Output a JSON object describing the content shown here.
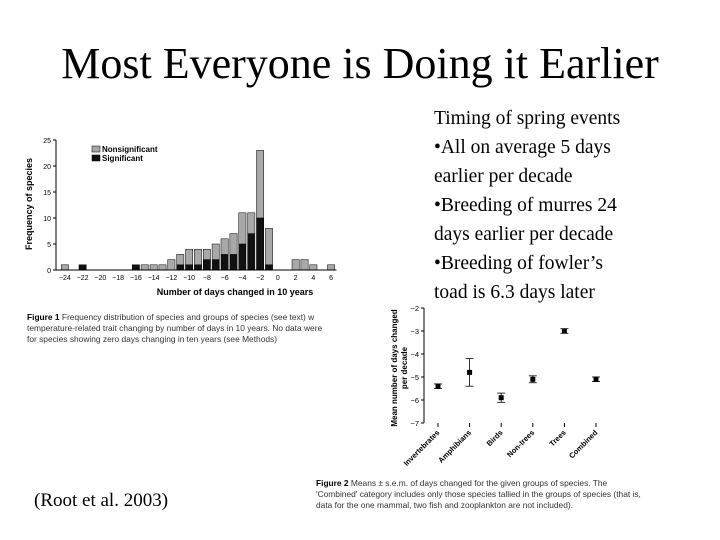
{
  "slide": {
    "title": "Most Everyone is Doing it Earlier",
    "bullets": [
      "Timing of spring events",
      "•All on average 5 days",
      "earlier per decade",
      "•Breeding of murres 24",
      "days earlier per decade",
      "•Breeding of fowler’s",
      "toad is 6.3 days later"
    ],
    "citation": "(Root et al. 2003)"
  },
  "figure1": {
    "caption_label": "Figure 1",
    "caption_lines": [
      " Frequency distribution of species and groups of species (see text) w",
      "temperature-related trait changing by number of days in 10 years. No data were",
      "for species showing zero days changing in ten years (see Methods)"
    ]
  },
  "figure2": {
    "caption_label": "Figure 2",
    "caption_lines": [
      " Means ± s.e.m. of days changed for the given groups of species. The",
      "'Combined' category includes only those species tallied in the groups of species (that is,",
      "data for the one mammal, two fish and zooplankton are not included)."
    ]
  },
  "colors": {
    "nonsignificant": "#a8a8a8",
    "significant": "#111111"
  },
  "chart_data": [
    {
      "type": "bar",
      "stacked": true,
      "xlabel": "Number of days changed in 10 years",
      "ylabel": "Frequency of species",
      "ylim": [
        0,
        25
      ],
      "yticks": [
        0,
        5,
        10,
        15,
        20,
        25
      ],
      "xticks": [
        -24,
        -22,
        -20,
        -18,
        -16,
        -14,
        -12,
        -10,
        -8,
        -6,
        -4,
        -2,
        0,
        2,
        4,
        6
      ],
      "xlim": [
        -25,
        7
      ],
      "legend": [
        "Nonsignificant",
        "Significant"
      ],
      "legend_position": "top-left",
      "x": [
        -24,
        -22,
        -16,
        -15,
        -14,
        -13,
        -12,
        -11,
        -10,
        -9,
        -8,
        -7,
        -6,
        -5,
        -4,
        -3,
        -2,
        -1,
        2,
        3,
        4,
        6
      ],
      "series": [
        {
          "name": "Significant",
          "values": [
            0,
            1,
            1,
            0,
            0,
            0,
            0,
            1,
            1,
            1,
            2,
            2,
            3,
            3,
            5,
            7,
            10,
            1,
            0,
            0,
            0,
            0
          ]
        },
        {
          "name": "Nonsignificant",
          "values": [
            1,
            0,
            0,
            1,
            1,
            1,
            2,
            2,
            3,
            3,
            2,
            3,
            3,
            4,
            6,
            4,
            13,
            7,
            2,
            2,
            1,
            1
          ]
        }
      ]
    },
    {
      "type": "scatter",
      "error_bars": true,
      "ylabel": "Mean number of days changed per decade",
      "ylim": [
        -7,
        -2
      ],
      "yticks": [
        -2,
        -3,
        -4,
        -5,
        -6,
        -7
      ],
      "categories": [
        "Invertebrates",
        "Amphibians",
        "Birds",
        "Non-trees",
        "Trees",
        "Combined"
      ],
      "values": [
        -5.4,
        -4.8,
        -5.9,
        -5.1,
        -3.0,
        -5.1
      ],
      "errors": [
        0.1,
        0.6,
        0.2,
        0.15,
        0.1,
        0.1
      ]
    }
  ]
}
